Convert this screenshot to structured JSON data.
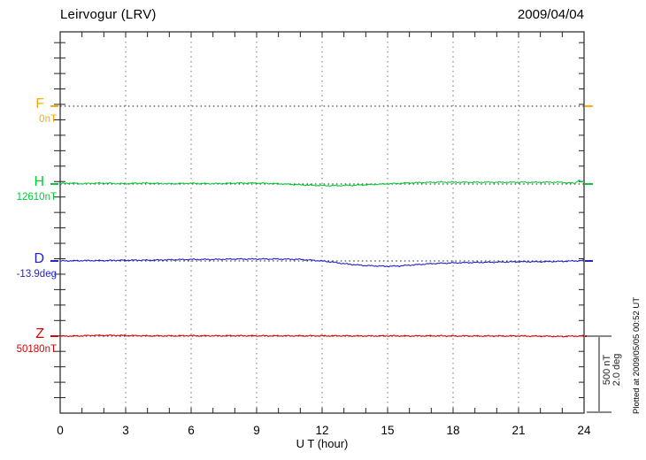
{
  "header": {
    "title": "Leirvogur (LRV)",
    "date": "2009/04/04"
  },
  "footer_note": "Plotted at 2009/05/05 00:52 UT",
  "x_axis": {
    "label": "U T (hour)",
    "tick_labels": [
      "0",
      "3",
      "6",
      "9",
      "12",
      "15",
      "18",
      "21",
      "24"
    ],
    "min": 0,
    "max": 24,
    "minor_step_hours": 1,
    "grid_hours": [
      3,
      6,
      9,
      12,
      15,
      18,
      21
    ]
  },
  "scale_bar": {
    "labels": [
      "500 nT",
      "2.0 deg"
    ],
    "span_nT": 500,
    "span_deg": 2.0
  },
  "colors": {
    "F": "#FFAA00",
    "H": "#00CC33",
    "D": "#2222CC",
    "Z": "#DD0000",
    "axis": "#222222",
    "grid": "#777777",
    "baseline_dots": "#222222",
    "scale_bar": "#888888",
    "text": "#000000",
    "background": "#FFFFFF"
  },
  "chart_data": {
    "type": "line",
    "title": "Leirvogur (LRV)",
    "date": "2009/04/04",
    "xlabel": "U T (hour)",
    "x_range": [
      0,
      24
    ],
    "x_ticks": [
      0,
      3,
      6,
      9,
      12,
      15,
      18,
      21,
      24
    ],
    "grid": "dotted vertical gridlines every 3 hours; dotted horizontal baseline per component",
    "legend_position": "left margin component labels",
    "scale": "500 nT and 2.0 deg correspond to the same bar length (about 87 px)",
    "series": [
      {
        "name": "F",
        "label": "F",
        "base_label": "0nT",
        "unit": "nT",
        "base_value": 0,
        "color_key": "F",
        "x": [],
        "values": []
      },
      {
        "name": "H",
        "label": "H",
        "base_label": "12610nT",
        "unit": "nT",
        "base_value": 12610,
        "color_key": "H",
        "x": [
          0,
          0.5,
          1,
          1.5,
          2,
          2.5,
          3,
          3.5,
          4,
          4.5,
          5,
          5.5,
          6,
          6.5,
          7,
          7.5,
          8,
          8.5,
          9,
          9.5,
          10,
          10.5,
          11,
          11.5,
          12,
          12.5,
          13,
          13.5,
          14,
          14.5,
          15,
          15.5,
          16,
          16.5,
          17,
          17.5,
          18,
          18.5,
          19,
          19.5,
          20,
          20.5,
          21,
          21.5,
          22,
          22.5,
          23,
          23.3,
          23.6,
          23.75,
          23.9,
          24
        ],
        "values": [
          12613,
          12616,
          12612,
          12615,
          12616,
          12613,
          12612,
          12615,
          12616,
          12613,
          12612,
          12613,
          12615,
          12613,
          12612,
          12613,
          12616,
          12616,
          12616,
          12614,
          12612,
          12608,
          12605,
          12602,
          12600,
          12599,
          12600,
          12602,
          12605,
          12608,
          12611,
          12614,
          12617,
          12619,
          12621,
          12622,
          12622,
          12621,
          12621,
          12622,
          12621,
          12621,
          12622,
          12621,
          12621,
          12622,
          12621,
          12617,
          12615,
          12636,
          12621,
          12622
        ]
      },
      {
        "name": "D",
        "label": "D",
        "base_label": "-13.9deg",
        "unit": "deg",
        "base_value": -13.9,
        "color_key": "D",
        "x": [
          0,
          1,
          2,
          3,
          4,
          5,
          6,
          7,
          8,
          9,
          10,
          11,
          11.5,
          12,
          12.5,
          13,
          13.5,
          14,
          14.5,
          15,
          15.5,
          16,
          16.5,
          17,
          18,
          19,
          20,
          21,
          22,
          23,
          23.5,
          24
        ],
        "values": [
          -13.9,
          -13.89,
          -13.89,
          -13.88,
          -13.88,
          -13.87,
          -13.86,
          -13.86,
          -13.85,
          -13.85,
          -13.85,
          -13.86,
          -13.88,
          -13.9,
          -13.93,
          -13.97,
          -14.0,
          -14.02,
          -14.03,
          -14.04,
          -14.03,
          -14.01,
          -13.99,
          -13.97,
          -13.95,
          -13.94,
          -13.93,
          -13.92,
          -13.92,
          -13.91,
          -13.9,
          -13.89
        ]
      },
      {
        "name": "Z",
        "label": "Z",
        "base_label": "50180nT",
        "unit": "nT",
        "base_value": 50180,
        "color_key": "Z",
        "x": [
          0,
          0.5,
          1,
          1.5,
          2,
          2.5,
          3,
          3.5,
          4,
          5,
          6,
          7,
          8,
          9,
          10,
          11,
          12,
          13,
          14,
          15,
          16,
          17,
          18,
          19,
          20,
          21,
          22,
          22.5,
          23,
          23.5,
          24
        ],
        "values": [
          50180,
          50181,
          50182,
          50185,
          50185,
          50185,
          50184,
          50183,
          50182,
          50182,
          50183,
          50182,
          50183,
          50182,
          50182,
          50182,
          50182,
          50182,
          50181,
          50182,
          50181,
          50182,
          50181,
          50181,
          50181,
          50181,
          50180,
          50179,
          50178,
          50180,
          50182
        ]
      }
    ]
  }
}
